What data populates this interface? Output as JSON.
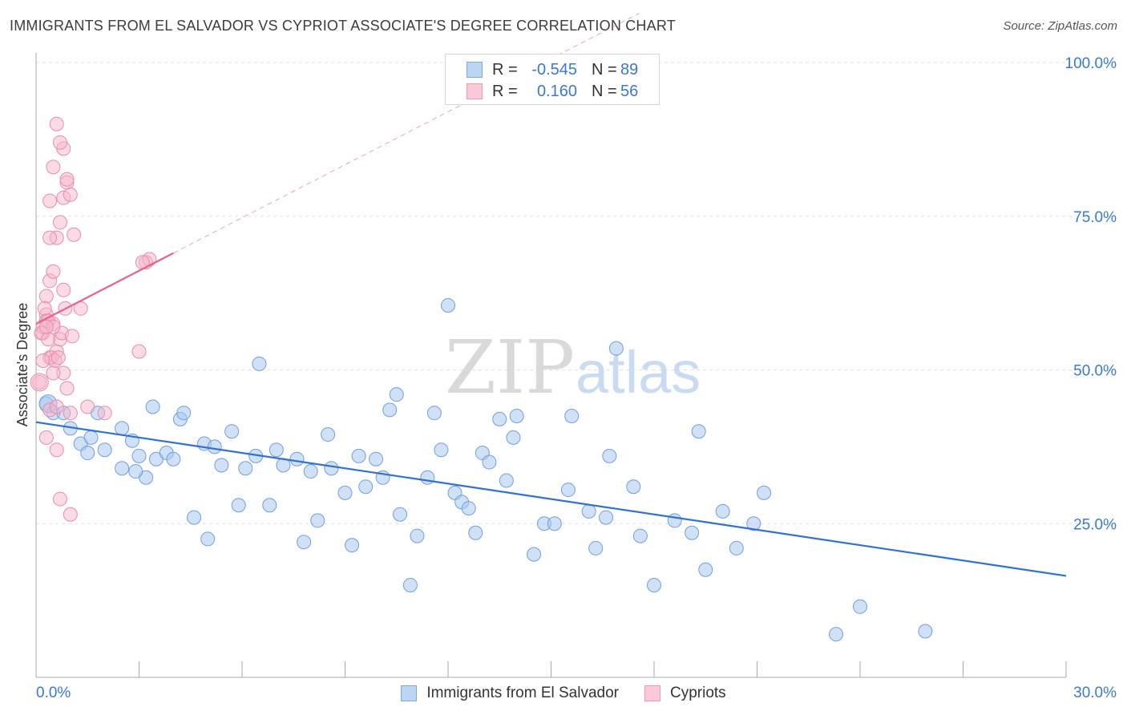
{
  "title": "IMMIGRANTS FROM EL SALVADOR VS CYPRIOT ASSOCIATE'S DEGREE CORRELATION CHART",
  "source": "Source: ZipAtlas.com",
  "watermark": {
    "zip": "ZIP",
    "atlas": "atlas"
  },
  "legend": {
    "rows": [
      {
        "r_label": "R =",
        "r_value": "-0.545",
        "n_label": "N =",
        "n_value": "89"
      },
      {
        "r_label": "R =",
        "r_value": "0.160",
        "n_label": "N =",
        "n_value": "56"
      }
    ]
  },
  "colors": {
    "blue_fill": "#a9c8ef",
    "blue_stroke": "#6f9fde",
    "blue_line": "#2f72d0",
    "pink_fill": "#f6b8cc",
    "pink_stroke": "#e98bab",
    "pink_line": "#e5638f",
    "axis_text": "#3b78cf",
    "grid": "#e2e2e2"
  },
  "chart_data": {
    "type": "scatter",
    "title": "IMMIGRANTS FROM EL SALVADOR VS CYPRIOT ASSOCIATE'S DEGREE CORRELATION CHART",
    "xlabel": "",
    "ylabel": "Associate's Degree",
    "xlim": [
      0,
      30
    ],
    "ylim": [
      0,
      100
    ],
    "x_tick_labels": [
      "0.0%",
      "30.0%"
    ],
    "y_tick_labels": [
      "25.0%",
      "50.0%",
      "75.0%",
      "100.0%"
    ],
    "y_ticks": [
      25,
      50,
      75,
      100
    ],
    "grid": true,
    "legend_position": "top-center",
    "series": [
      {
        "name": "Immigrants from El Salvador",
        "r": -0.545,
        "n": 89,
        "trend": {
          "x": [
            0,
            30
          ],
          "y": [
            41.5,
            16.5
          ]
        },
        "points": [
          [
            0.3,
            44.5
          ],
          [
            0.5,
            43
          ],
          [
            1.0,
            40.5
          ],
          [
            0.8,
            43
          ],
          [
            1.3,
            38
          ],
          [
            1.5,
            36.5
          ],
          [
            1.6,
            39
          ],
          [
            2.0,
            37
          ],
          [
            2.5,
            40.5
          ],
          [
            2.5,
            34
          ],
          [
            2.8,
            38.5
          ],
          [
            3.0,
            36
          ],
          [
            3.2,
            32.5
          ],
          [
            3.4,
            44
          ],
          [
            3.5,
            35.5
          ],
          [
            3.8,
            36.5
          ],
          [
            4.0,
            35.5
          ],
          [
            4.2,
            42
          ],
          [
            4.3,
            43
          ],
          [
            4.6,
            26
          ],
          [
            4.9,
            38
          ],
          [
            5.0,
            22.5
          ],
          [
            5.2,
            37.5
          ],
          [
            5.4,
            34.5
          ],
          [
            5.7,
            40
          ],
          [
            5.9,
            28
          ],
          [
            6.1,
            34
          ],
          [
            6.4,
            36
          ],
          [
            6.5,
            51
          ],
          [
            6.8,
            28
          ],
          [
            7.0,
            37
          ],
          [
            7.2,
            34.5
          ],
          [
            7.6,
            35.5
          ],
          [
            7.8,
            22
          ],
          [
            8.0,
            33.5
          ],
          [
            8.2,
            25.5
          ],
          [
            8.5,
            39.5
          ],
          [
            8.6,
            34
          ],
          [
            9.0,
            30
          ],
          [
            9.2,
            21.5
          ],
          [
            9.4,
            36
          ],
          [
            9.6,
            31
          ],
          [
            9.9,
            35.5
          ],
          [
            10.1,
            32.5
          ],
          [
            10.3,
            43.5
          ],
          [
            10.5,
            46
          ],
          [
            10.6,
            26.5
          ],
          [
            10.9,
            15
          ],
          [
            11.1,
            23
          ],
          [
            11.4,
            32.5
          ],
          [
            11.6,
            43
          ],
          [
            11.8,
            37
          ],
          [
            12.0,
            60.5
          ],
          [
            12.2,
            30
          ],
          [
            12.4,
            28.5
          ],
          [
            12.6,
            27.5
          ],
          [
            12.8,
            23.5
          ],
          [
            13.0,
            36.5
          ],
          [
            13.2,
            35
          ],
          [
            13.5,
            42
          ],
          [
            13.7,
            32
          ],
          [
            13.9,
            39
          ],
          [
            14.0,
            42.5
          ],
          [
            14.5,
            20
          ],
          [
            14.8,
            25
          ],
          [
            15.1,
            25
          ],
          [
            15.5,
            30.5
          ],
          [
            15.6,
            42.5
          ],
          [
            16.1,
            27
          ],
          [
            16.3,
            21
          ],
          [
            16.6,
            26
          ],
          [
            16.7,
            36
          ],
          [
            16.9,
            53.5
          ],
          [
            17.4,
            31
          ],
          [
            17.6,
            23
          ],
          [
            18.0,
            15
          ],
          [
            18.6,
            25.5
          ],
          [
            19.1,
            23.5
          ],
          [
            19.5,
            17.5
          ],
          [
            19.3,
            40
          ],
          [
            20.0,
            27
          ],
          [
            20.4,
            21
          ],
          [
            20.9,
            25
          ],
          [
            21.2,
            30
          ],
          [
            23.3,
            7
          ],
          [
            24.0,
            11.5
          ],
          [
            25.9,
            7.5
          ],
          [
            1.8,
            43
          ],
          [
            2.9,
            33.5
          ]
        ]
      },
      {
        "name": "Cypriots",
        "r": 0.16,
        "n": 56,
        "trend": {
          "x": [
            0,
            4.0
          ],
          "y": [
            57.5,
            69.0
          ],
          "x_dashed_to": 30,
          "y_dashed_to": 144
        },
        "points": [
          [
            0.1,
            48
          ],
          [
            0.2,
            56
          ],
          [
            0.3,
            59
          ],
          [
            0.4,
            52
          ],
          [
            0.5,
            57.5
          ],
          [
            0.6,
            53
          ],
          [
            0.7,
            55
          ],
          [
            0.8,
            49.5
          ],
          [
            0.9,
            47
          ],
          [
            1.0,
            43
          ],
          [
            0.3,
            62
          ],
          [
            0.4,
            64.5
          ],
          [
            0.5,
            66
          ],
          [
            0.6,
            71.5
          ],
          [
            0.7,
            74
          ],
          [
            0.8,
            78
          ],
          [
            0.9,
            80.5
          ],
          [
            1.0,
            78.5
          ],
          [
            1.1,
            72
          ],
          [
            0.5,
            83
          ],
          [
            0.6,
            90
          ],
          [
            0.8,
            86
          ],
          [
            0.7,
            87
          ],
          [
            0.4,
            77.5
          ],
          [
            0.9,
            81
          ],
          [
            0.3,
            58
          ],
          [
            0.2,
            57
          ],
          [
            0.15,
            56
          ],
          [
            0.35,
            55
          ],
          [
            0.45,
            52
          ],
          [
            0.55,
            51.5
          ],
          [
            0.65,
            52
          ],
          [
            0.75,
            56
          ],
          [
            0.85,
            60
          ],
          [
            1.05,
            55.5
          ],
          [
            1.3,
            60
          ],
          [
            0.3,
            39
          ],
          [
            0.6,
            37
          ],
          [
            0.7,
            29
          ],
          [
            1.0,
            26.5
          ],
          [
            1.5,
            44
          ],
          [
            2.0,
            43
          ],
          [
            3.0,
            53
          ],
          [
            3.2,
            67.5
          ],
          [
            3.3,
            68
          ],
          [
            3.1,
            67.5
          ],
          [
            0.25,
            60
          ],
          [
            0.35,
            58
          ],
          [
            0.5,
            57
          ],
          [
            0.2,
            51.5
          ],
          [
            0.4,
            43.5
          ],
          [
            0.6,
            44
          ],
          [
            0.5,
            49.5
          ],
          [
            0.8,
            63
          ],
          [
            0.4,
            71.5
          ],
          [
            0.3,
            57
          ]
        ]
      }
    ]
  }
}
